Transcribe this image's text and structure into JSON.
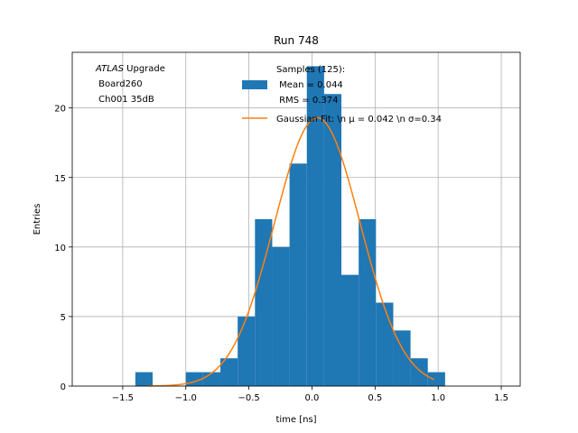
{
  "chart_data": {
    "type": "bar",
    "title": "Run 748",
    "xlabel": "time [ns]",
    "ylabel": "Entries",
    "xlim": [
      -1.9,
      1.65
    ],
    "ylim": [
      0,
      24
    ],
    "xticks": [
      -1.5,
      -1.0,
      -0.5,
      0.0,
      0.5,
      1.0,
      1.5
    ],
    "xtick_labels": [
      "−1.5",
      "−1.0",
      "−0.5",
      "0.0",
      "0.5",
      "1.0",
      "1.5"
    ],
    "yticks": [
      0,
      5,
      10,
      15,
      20
    ],
    "ytick_labels": [
      "0",
      "5",
      "10",
      "15",
      "20"
    ],
    "grid": true,
    "bin_width": 0.137,
    "bins": [
      {
        "x0": -1.4,
        "count": 1
      },
      {
        "x0": -1.0,
        "count": 1
      },
      {
        "x0": -0.863,
        "count": 1
      },
      {
        "x0": -0.726,
        "count": 2
      },
      {
        "x0": -0.589,
        "count": 5
      },
      {
        "x0": -0.452,
        "count": 12
      },
      {
        "x0": -0.315,
        "count": 10
      },
      {
        "x0": -0.178,
        "count": 16
      },
      {
        "x0": -0.041,
        "count": 23
      },
      {
        "x0": 0.096,
        "count": 21
      },
      {
        "x0": 0.233,
        "count": 8
      },
      {
        "x0": 0.37,
        "count": 12
      },
      {
        "x0": 0.507,
        "count": 6
      },
      {
        "x0": 0.644,
        "count": 4
      },
      {
        "x0": 0.781,
        "count": 2
      },
      {
        "x0": 0.918,
        "count": 1
      }
    ],
    "fit": {
      "mu": 0.042,
      "sigma": 0.34,
      "amplitude": 19.3,
      "x_range": [
        -1.3,
        0.97
      ]
    },
    "colors": {
      "hist": "#1f77b4",
      "fit": "#ff7f0e",
      "grid": "#b0b0b0"
    },
    "legend": {
      "placement": "top-center",
      "hist_label": "Samples (125):\n Mean = 0.044\n RMS = 0.374",
      "fit_label": "Gaussian Fit: \\n μ = 0.042 \\n σ=0.34"
    },
    "annotation": {
      "italic": "ATLAS",
      "lines": [
        " Upgrade",
        " Board260",
        " Ch001 35dB"
      ]
    }
  }
}
